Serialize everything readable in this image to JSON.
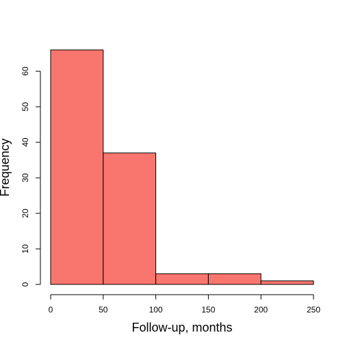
{
  "chart_data": {
    "type": "bar",
    "title": "",
    "xlabel": "Follow-up, months",
    "ylabel": "Frequency",
    "bins": [
      {
        "from": 0,
        "to": 50,
        "count": 66
      },
      {
        "from": 50,
        "to": 100,
        "count": 37
      },
      {
        "from": 100,
        "to": 150,
        "count": 3
      },
      {
        "from": 150,
        "to": 200,
        "count": 3
      },
      {
        "from": 200,
        "to": 250,
        "count": 1
      }
    ],
    "xlim": [
      0,
      250
    ],
    "ylim": [
      0,
      66
    ],
    "xticks": [
      0,
      50,
      100,
      150,
      200,
      250
    ],
    "yticks": [
      0,
      10,
      20,
      30,
      40,
      50,
      60
    ],
    "bar_color": "#F8766D",
    "edge_color": "#000000",
    "grid": false,
    "legend": "none"
  }
}
